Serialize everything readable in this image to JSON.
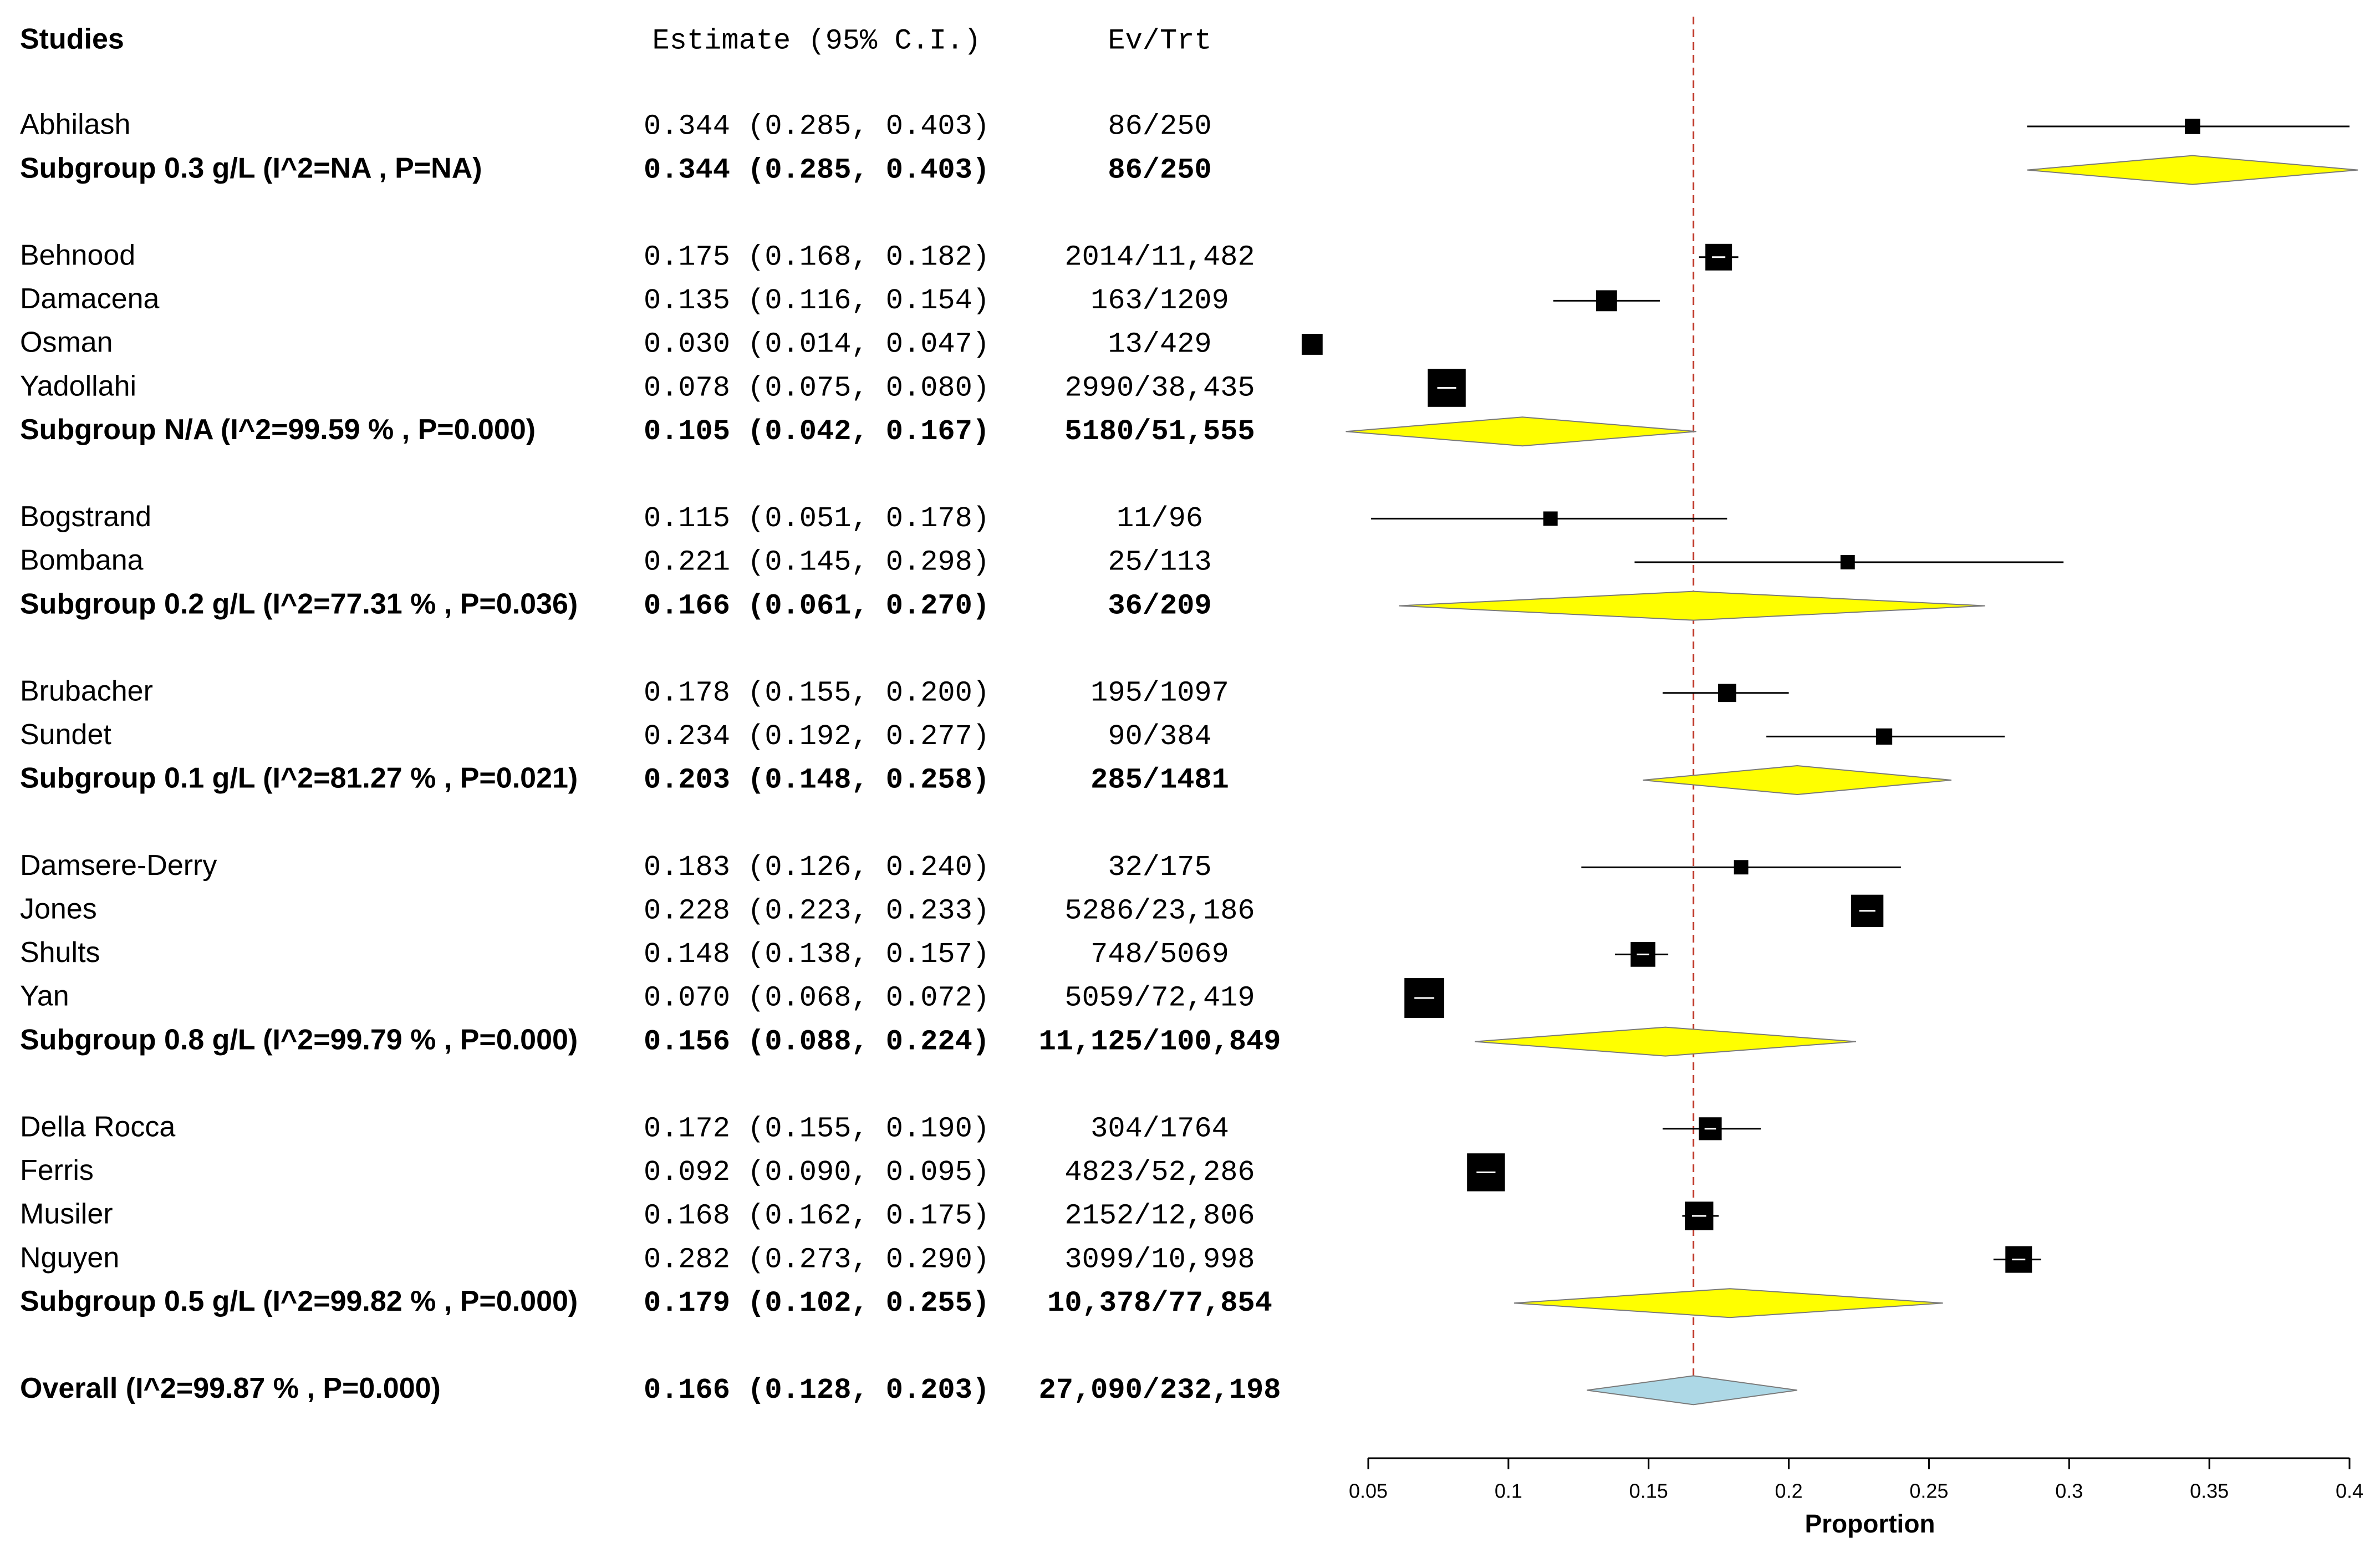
{
  "chart_data": {
    "type": "forest",
    "headers": {
      "studies": "Studies",
      "estimate": "Estimate (95% C.I.)",
      "events": "Ev/Trt"
    },
    "xlabel": "Proportion",
    "xlim": [
      0.05,
      0.4
    ],
    "x_ticks": [
      0.05,
      0.1,
      0.15,
      0.2,
      0.25,
      0.3,
      0.35,
      0.4
    ],
    "x_tick_labels": [
      "0.05",
      "0.1",
      "0.15",
      "0.2",
      "0.25",
      "0.3",
      "0.35",
      "0.4"
    ],
    "reference_line": 0.166,
    "rows": [
      {
        "kind": "study",
        "label": "Abhilash",
        "est": 0.344,
        "lo": 0.285,
        "hi": 0.403,
        "ci_text": "0.344 (0.285, 0.403)",
        "ev_trt": "86/250",
        "weight": 0.4
      },
      {
        "kind": "subgroup",
        "label": "Subgroup 0.3 g/L (I^2=NA , P=NA)",
        "est": 0.344,
        "lo": 0.285,
        "hi": 0.403,
        "ci_text": "0.344 (0.285, 0.403)",
        "ev_trt": "86/250"
      },
      {
        "kind": "gap"
      },
      {
        "kind": "study",
        "label": "Behnood",
        "est": 0.175,
        "lo": 0.168,
        "hi": 0.182,
        "ci_text": "0.175 (0.168, 0.182)",
        "ev_trt": "2014/11,482",
        "weight": 1.0
      },
      {
        "kind": "study",
        "label": "Damacena",
        "est": 0.135,
        "lo": 0.116,
        "hi": 0.154,
        "ci_text": "0.135 (0.116, 0.154)",
        "ev_trt": "163/1209",
        "weight": 0.7
      },
      {
        "kind": "study",
        "label": "Osman",
        "est": 0.03,
        "lo": 0.014,
        "hi": 0.047,
        "ci_text": "0.030 (0.014, 0.047)",
        "ev_trt": "13/429",
        "weight": 0.7
      },
      {
        "kind": "study",
        "label": "Yadollahi",
        "est": 0.078,
        "lo": 0.075,
        "hi": 0.08,
        "ci_text": "0.078 (0.075, 0.080)",
        "ev_trt": "2990/38,435",
        "weight": 1.6
      },
      {
        "kind": "subgroup",
        "label": "Subgroup N/A (I^2=99.59 % , P=0.000)",
        "est": 0.105,
        "lo": 0.042,
        "hi": 0.167,
        "ci_text": "0.105 (0.042, 0.167)",
        "ev_trt": "5180/51,555"
      },
      {
        "kind": "gap"
      },
      {
        "kind": "study",
        "label": "Bogstrand",
        "est": 0.115,
        "lo": 0.051,
        "hi": 0.178,
        "ci_text": "0.115 (0.051, 0.178)",
        "ev_trt": "11/96",
        "weight": 0.35
      },
      {
        "kind": "study",
        "label": "Bombana",
        "est": 0.221,
        "lo": 0.145,
        "hi": 0.298,
        "ci_text": "0.221 (0.145, 0.298)",
        "ev_trt": "25/113",
        "weight": 0.35
      },
      {
        "kind": "subgroup",
        "label": "Subgroup 0.2 g/L (I^2=77.31 % , P=0.036)",
        "est": 0.166,
        "lo": 0.061,
        "hi": 0.27,
        "ci_text": "0.166 (0.061, 0.270)",
        "ev_trt": "36/209"
      },
      {
        "kind": "gap"
      },
      {
        "kind": "study",
        "label": "Brubacher",
        "est": 0.178,
        "lo": 0.155,
        "hi": 0.2,
        "ci_text": "0.178 (0.155, 0.200)",
        "ev_trt": "195/1097",
        "weight": 0.55
      },
      {
        "kind": "study",
        "label": "Sundet",
        "est": 0.234,
        "lo": 0.192,
        "hi": 0.277,
        "ci_text": "0.234 (0.192, 0.277)",
        "ev_trt": "90/384",
        "weight": 0.45
      },
      {
        "kind": "subgroup",
        "label": "Subgroup 0.1 g/L (I^2=81.27 % , P=0.021)",
        "est": 0.203,
        "lo": 0.148,
        "hi": 0.258,
        "ci_text": "0.203 (0.148, 0.258)",
        "ev_trt": "285/1481"
      },
      {
        "kind": "gap"
      },
      {
        "kind": "study",
        "label": "Damsere-Derry",
        "est": 0.183,
        "lo": 0.126,
        "hi": 0.24,
        "ci_text": "0.183 (0.126, 0.240)",
        "ev_trt": "32/175",
        "weight": 0.35
      },
      {
        "kind": "study",
        "label": "Jones",
        "est": 0.228,
        "lo": 0.223,
        "hi": 0.233,
        "ci_text": "0.228 (0.223, 0.233)",
        "ev_trt": "5286/23,186",
        "weight": 1.3
      },
      {
        "kind": "study",
        "label": "Shults",
        "est": 0.148,
        "lo": 0.138,
        "hi": 0.157,
        "ci_text": "0.148 (0.138, 0.157)",
        "ev_trt": "748/5069",
        "weight": 0.9
      },
      {
        "kind": "study",
        "label": "Yan",
        "est": 0.07,
        "lo": 0.068,
        "hi": 0.072,
        "ci_text": "0.070 (0.068, 0.072)",
        "ev_trt": "5059/72,419",
        "weight": 1.7
      },
      {
        "kind": "subgroup",
        "label": "Subgroup 0.8 g/L (I^2=99.79 % , P=0.000)",
        "est": 0.156,
        "lo": 0.088,
        "hi": 0.224,
        "ci_text": "0.156 (0.088, 0.224)",
        "ev_trt": "11,125/100,849"
      },
      {
        "kind": "gap"
      },
      {
        "kind": "study",
        "label": "Della Rocca",
        "est": 0.172,
        "lo": 0.155,
        "hi": 0.19,
        "ci_text": "0.172 (0.155, 0.190)",
        "ev_trt": "304/1764",
        "weight": 0.8
      },
      {
        "kind": "study",
        "label": "Ferris",
        "est": 0.092,
        "lo": 0.09,
        "hi": 0.095,
        "ci_text": "0.092 (0.090, 0.095)",
        "ev_trt": "4823/52,286",
        "weight": 1.6
      },
      {
        "kind": "study",
        "label": "Musiler",
        "est": 0.168,
        "lo": 0.162,
        "hi": 0.175,
        "ci_text": "0.168 (0.162, 0.175)",
        "ev_trt": "2152/12,806",
        "weight": 1.1
      },
      {
        "kind": "study",
        "label": "Nguyen",
        "est": 0.282,
        "lo": 0.273,
        "hi": 0.29,
        "ci_text": "0.282 (0.273, 0.290)",
        "ev_trt": "3099/10,998",
        "weight": 1.0
      },
      {
        "kind": "subgroup",
        "label": "Subgroup 0.5 g/L (I^2=99.82 % , P=0.000)",
        "est": 0.179,
        "lo": 0.102,
        "hi": 0.255,
        "ci_text": "0.179 (0.102, 0.255)",
        "ev_trt": "10,378/77,854"
      },
      {
        "kind": "gap"
      },
      {
        "kind": "overall",
        "label": "Overall (I^2=99.87 % , P=0.000)",
        "est": 0.166,
        "lo": 0.128,
        "hi": 0.203,
        "ci_text": "0.166 (0.128, 0.203)",
        "ev_trt": "27,090/232,198"
      }
    ],
    "colors": {
      "subgroup_diamond": "#ffff00",
      "overall_diamond": "#add8e6",
      "reference_line": "#c0392b",
      "marker": "#000000"
    }
  }
}
